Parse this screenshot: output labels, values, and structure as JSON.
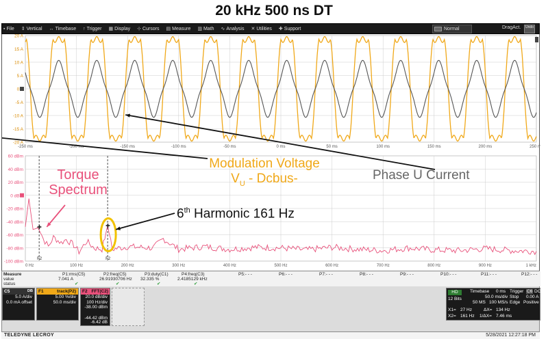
{
  "page_title": "20 kHz 500 ns DT",
  "menu": [
    {
      "label": "File",
      "icon": "file-icon"
    },
    {
      "label": "Vertical",
      "icon": "vertical-icon"
    },
    {
      "label": "Timebase",
      "icon": "timebase-icon"
    },
    {
      "label": "Trigger",
      "icon": "trigger-icon"
    },
    {
      "label": "Display",
      "icon": "display-icon"
    },
    {
      "label": "Cursors",
      "icon": "cursors-icon"
    },
    {
      "label": "Measure",
      "icon": "measure-icon"
    },
    {
      "label": "Math",
      "icon": "math-icon"
    },
    {
      "label": "Analysis",
      "icon": "analysis-icon"
    },
    {
      "label": "Utilities",
      "icon": "utilities-icon"
    },
    {
      "label": "Support",
      "icon": "support-icon"
    }
  ],
  "trigger_mode": "Normal",
  "drag_mode": "DragAct.",
  "undo_label": "Undo",
  "chart_data": [
    {
      "type": "line",
      "name": "time-domain",
      "ylabels": [
        "20 A",
        "15 A",
        "10 A",
        "5 A",
        "0 A",
        "-5 A",
        "-10 A",
        "-15 A",
        "-20 A"
      ],
      "xlabels": [
        "-250 ms",
        "-200 ms",
        "-150 ms",
        "-100 ms",
        "-50 ms",
        "0 ms",
        "50 ms",
        "100 ms",
        "150 ms",
        "200 ms",
        "250 ms"
      ],
      "x_range": [
        -250,
        250
      ],
      "y_range": [
        -20,
        20
      ],
      "grid": true,
      "series": [
        {
          "name": "Modulation Voltage",
          "color": "#f0a818",
          "frequency_hz": 26.9,
          "peak": 18.5
        },
        {
          "name": "Phase U Current",
          "color": "#555555",
          "frequency_hz": 26.9,
          "peak": 10.0
        }
      ]
    },
    {
      "type": "line",
      "name": "fft-spectrum",
      "ylabels": [
        "60 dBm",
        "40 dBm",
        "20 dBm",
        "0 dBm",
        "-20 dBm",
        "-40 dBm",
        "-60 dBm",
        "-80 dBm",
        "-100 dBm"
      ],
      "xlabels": [
        "0 Hz",
        "100 Hz",
        "200 Hz",
        "300 Hz",
        "400 Hz",
        "500 Hz",
        "600 Hz",
        "700 Hz",
        "800 Hz",
        "900 Hz",
        "1 kHz"
      ],
      "x_range": [
        0,
        1000
      ],
      "y_range": [
        -100,
        60
      ],
      "grid": true,
      "series": [
        {
          "name": "Torque Spectrum",
          "color": "#e8507a",
          "points": [
            [
              0,
              -48
            ],
            [
              7,
              -5
            ],
            [
              15,
              -52
            ],
            [
              27,
              -49
            ],
            [
              35,
              -66
            ],
            [
              45,
              -78
            ],
            [
              55,
              -64
            ],
            [
              70,
              -72
            ],
            [
              80,
              -67
            ],
            [
              95,
              -76
            ],
            [
              105,
              -86
            ],
            [
              120,
              -70
            ],
            [
              135,
              -80
            ],
            [
              150,
              -82
            ],
            [
              161,
              -46
            ],
            [
              170,
              -82
            ],
            [
              200,
              -78
            ],
            [
              250,
              -80
            ],
            [
              270,
              -66
            ],
            [
              300,
              -82
            ],
            [
              350,
              -78
            ],
            [
              400,
              -82
            ],
            [
              450,
              -79
            ],
            [
              500,
              -80
            ],
            [
              550,
              -83
            ],
            [
              600,
              -79
            ],
            [
              650,
              -82
            ],
            [
              700,
              -84
            ],
            [
              750,
              -80
            ],
            [
              800,
              -83
            ],
            [
              850,
              -84
            ],
            [
              900,
              -81
            ],
            [
              950,
              -84
            ],
            [
              1000,
              -85
            ]
          ]
        }
      ]
    }
  ],
  "cursors": {
    "c1_label": "F2",
    "c2_label": "F2"
  },
  "annotations": {
    "torque_line1": "Torque",
    "torque_line2": "Spectrum",
    "modulation_line1": "Modulation Voltage",
    "modulation_line2_v": "V",
    "modulation_line2_sub": "U",
    "modulation_line2_rest": " - Dcbus-",
    "phase": "Phase U Current",
    "harmonic_sup": "th",
    "harmonic_pre": "6",
    "harmonic_text": " Harmonic 161 Hz"
  },
  "measure": {
    "header": "Measure",
    "row_labels": [
      "value",
      "status"
    ],
    "params": [
      {
        "name": "P1:rms(C5)",
        "value": "7.041 A"
      },
      {
        "name": "P2:freq(C5)",
        "value": "26.91930706 Hz"
      },
      {
        "name": "P3:duty(C1)",
        "value": "32.335 %"
      },
      {
        "name": "P4:freq(C3)",
        "value": "2.4185129 kHz"
      },
      {
        "name": "P5:- - -",
        "value": ""
      },
      {
        "name": "P6:- - -",
        "value": ""
      },
      {
        "name": "P7:- - -",
        "value": ""
      },
      {
        "name": "P8:- - -",
        "value": ""
      },
      {
        "name": "P9:- - -",
        "value": ""
      },
      {
        "name": "P10:- - -",
        "value": ""
      },
      {
        "name": "P11:- - -",
        "value": ""
      },
      {
        "name": "P12:- - -",
        "value": ""
      }
    ]
  },
  "channels": {
    "c5": {
      "label": "C5",
      "badges": "DB",
      "l1": "5.0 A/div",
      "l2": "0.0 mA offset"
    },
    "f1": {
      "label": "F1",
      "title": "track(P2)",
      "l1": "5.00 %/div",
      "l2": "50.0 ms/div"
    },
    "f2": {
      "label": "F2",
      "title": "FFT(C2)",
      "l1": "20.0 dB/div",
      "l2": "100 Hz/div",
      "l3": "-38.00 dBm",
      "l4": "-44.42 dBm",
      "l5": "-6.42 dB"
    }
  },
  "timebase": {
    "hd": "HD",
    "bits": "12 Bits",
    "label": "Timebase",
    "delay": "0 ms",
    "trigger": "Trigger",
    "ch": "C6",
    "dc": "DC",
    "tdiv": "50.0 ms/div",
    "stop": "Stop",
    "level": "0.00 A",
    "samples": "50 MS",
    "rate": "100 MS/s",
    "edge": "Edge",
    "slope": "Positive",
    "x1": "X1=",
    "x1v": "27 Hz",
    "dx": "ΔX=",
    "dxv": "134 Hz",
    "x2": "X2=",
    "x2v": "161 Hz",
    "idx": "1/ΔX=",
    "idxv": "7.46 ms"
  },
  "footer": {
    "brand": "TELEDYNE LECROY",
    "datetime": "5/28/2021 12:27:18 PM"
  }
}
